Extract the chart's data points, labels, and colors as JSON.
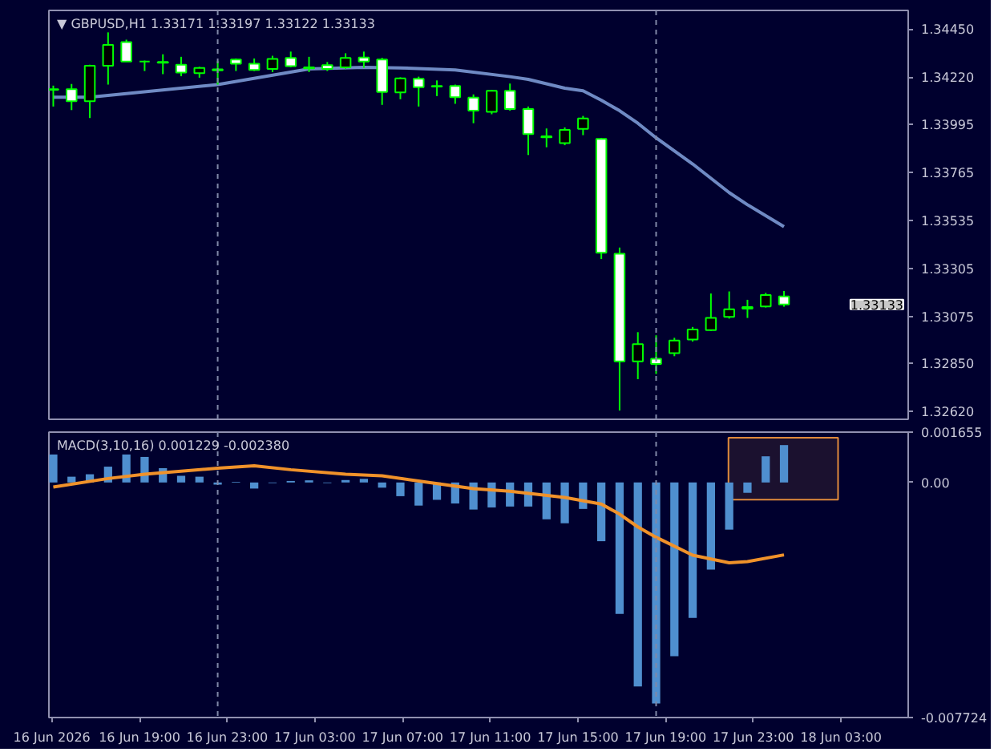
{
  "chart_data": [
    {
      "type": "candlestick",
      "title": "▼ GBPUSD,H1  1.33171 1.33197 1.33122 1.33133",
      "tick_labels": "y",
      "color": "#00ff00",
      "x": [
        "2026-06-16T15:04",
        "2026-06-16T15:54",
        "2026-06-16T16:44",
        "2026-06-16T17:34",
        "2026-06-16T18:24",
        "2026-06-16T19:14",
        "2026-06-16T20:04",
        "2026-06-16T20:54",
        "2026-06-16T21:44",
        "2026-06-16T22:34",
        "2026-06-16T23:24",
        "2026-06-17T00:14",
        "2026-06-17T01:04",
        "2026-06-17T01:54",
        "2026-06-17T02:44",
        "2026-06-17T03:34",
        "2026-06-17T04:24",
        "2026-06-17T05:14",
        "2026-06-17T06:04",
        "2026-06-17T06:54",
        "2026-06-17T07:44",
        "2026-06-17T08:34",
        "2026-06-17T09:24",
        "2026-06-17T10:14",
        "2026-06-17T11:04",
        "2026-06-17T11:54",
        "2026-06-17T12:44",
        "2026-06-17T13:34",
        "2026-06-17T14:24",
        "2026-06-17T15:14",
        "2026-06-17T16:04",
        "2026-06-17T16:54",
        "2026-06-17T17:44",
        "2026-06-17T18:34",
        "2026-06-17T19:24",
        "2026-06-17T20:14",
        "2026-06-17T21:04",
        "2026-06-17T21:54",
        "2026-06-17T22:44",
        "2026-06-17T23:34",
        "2026-06-18T00:24"
      ],
      "ohlc": [
        [
          1.34163,
          1.3418,
          1.3408,
          1.3416
        ],
        [
          1.34163,
          1.34188,
          1.34063,
          1.34105
        ],
        [
          1.34105,
          1.3428,
          1.34025,
          1.34275
        ],
        [
          1.34275,
          1.34435,
          1.34185,
          1.34375
        ],
        [
          1.34388,
          1.344,
          1.34295,
          1.34295
        ],
        [
          1.34295,
          1.343,
          1.3425,
          1.34295
        ],
        [
          1.34293,
          1.3433,
          1.34235,
          1.3429
        ],
        [
          1.3428,
          1.34318,
          1.34225,
          1.34243
        ],
        [
          1.3424,
          1.3427,
          1.34218,
          1.34265
        ],
        [
          1.34258,
          1.34298,
          1.34185,
          1.34253
        ],
        [
          1.34305,
          1.3431,
          1.3425,
          1.34285
        ],
        [
          1.34285,
          1.3431,
          1.3425,
          1.34255
        ],
        [
          1.3426,
          1.34323,
          1.34245,
          1.34308
        ],
        [
          1.34313,
          1.34343,
          1.34268,
          1.34273
        ],
        [
          1.34268,
          1.34318,
          1.34245,
          1.34263
        ],
        [
          1.34278,
          1.34293,
          1.3425,
          1.3426
        ],
        [
          1.34268,
          1.34335,
          1.3426,
          1.34313
        ],
        [
          1.34315,
          1.34343,
          1.34265,
          1.34295
        ],
        [
          1.34305,
          1.34313,
          1.34088,
          1.3415
        ],
        [
          1.34148,
          1.3422,
          1.34115,
          1.34215
        ],
        [
          1.34213,
          1.34223,
          1.3408,
          1.34173
        ],
        [
          1.34178,
          1.34205,
          1.3413,
          1.34175
        ],
        [
          1.34178,
          1.34185,
          1.34093,
          1.34125
        ],
        [
          1.34123,
          1.34138,
          1.34,
          1.3406
        ],
        [
          1.34055,
          1.3416,
          1.34043,
          1.34155
        ],
        [
          1.34155,
          1.3419,
          1.3406,
          1.34068
        ],
        [
          1.34068,
          1.3408,
          1.33848,
          1.33948
        ],
        [
          1.33938,
          1.33975,
          1.33885,
          1.33933
        ],
        [
          1.33905,
          1.3398,
          1.33895,
          1.33968
        ],
        [
          1.33973,
          1.34035,
          1.33943,
          1.34023
        ],
        [
          1.33925,
          1.3393,
          1.3335,
          1.3338
        ],
        [
          1.33375,
          1.33405,
          1.32625,
          1.3286
        ],
        [
          1.3286,
          1.33,
          1.32775,
          1.32943
        ],
        [
          1.32873,
          1.32985,
          1.328,
          1.32848
        ],
        [
          1.329,
          1.32973,
          1.32885,
          1.3296
        ],
        [
          1.32965,
          1.33025,
          1.32955,
          1.33013
        ],
        [
          1.3301,
          1.33185,
          1.33005,
          1.33068
        ],
        [
          1.33073,
          1.33195,
          1.33065,
          1.3311
        ],
        [
          1.33113,
          1.33155,
          1.33068,
          1.3312
        ],
        [
          1.33123,
          1.33188,
          1.33118,
          1.33178
        ],
        [
          1.33171,
          1.33197,
          1.33122,
          1.33133
        ]
      ],
      "colors": [
        "#ffffff",
        "#ffffff",
        "#000000",
        "#000000",
        "#ffffff",
        "#00ff00",
        "#ffffff",
        "#ffffff",
        "#000000",
        "#ffffff",
        "#ffffff",
        "#ffffff",
        "#000000",
        "#ffffff",
        "#ffffff",
        "#ffffff",
        "#000000",
        "#ffffff",
        "#ffffff",
        "#000000",
        "#ffffff",
        "#ffffff",
        "#ffffff",
        "#ffffff",
        "#000000",
        "#ffffff",
        "#ffffff",
        "#ffffff",
        "#000000",
        "#000000",
        "#ffffff",
        "#ffffff",
        "#000000",
        "#ffffff",
        "#000000",
        "#000000",
        "#000000",
        "#000000",
        "#000000",
        "#000000",
        "#ffffff"
      ],
      "series": [
        {
          "type": "line",
          "color": "#6f8ac4",
          "x": [
            "2026-06-16T15:04",
            "2026-06-16T16:44",
            "2026-06-16T22:34",
            "2026-06-17T02:44",
            "2026-06-17T05:14",
            "2026-06-17T06:54",
            "2026-06-17T09:24",
            "2026-06-17T11:54",
            "2026-06-17T12:44",
            "2026-06-17T14:24",
            "2026-06-17T15:14",
            "2026-06-17T16:04",
            "2026-06-17T16:54",
            "2026-06-17T17:44",
            "2026-06-17T18:34",
            "2026-06-17T20:14",
            "2026-06-17T21:54",
            "2026-06-17T22:44",
            "2026-06-18T00:24"
          ],
          "values": [
            1.34125,
            1.34125,
            1.34185,
            1.3426,
            1.34268,
            1.34265,
            1.34255,
            1.34223,
            1.3421,
            1.34168,
            1.34155,
            1.3411,
            1.3406,
            1.34,
            1.3393,
            1.33805,
            1.33668,
            1.3361,
            1.33505
          ]
        }
      ],
      "annotations": [
        "1.33133"
      ],
      "xlim": [
        "2026-06-16T14:52",
        "2026-06-18T06:04"
      ],
      "ylim": [
        1.32583,
        1.3454
      ],
      "yticks": [
        {
          "value": 1.3445,
          "label": "1.34450"
        },
        {
          "value": 1.3422,
          "label": "1.34220"
        },
        {
          "value": 1.33995,
          "label": "1.33995"
        },
        {
          "value": 1.33765,
          "label": "1.33765"
        },
        {
          "value": 1.33535,
          "label": "1.33535"
        },
        {
          "value": 1.33305,
          "label": "1.33305"
        },
        {
          "value": 1.33075,
          "label": "1.33075"
        },
        {
          "value": 1.3285,
          "label": "1.32850"
        },
        {
          "value": 1.3262,
          "label": "1.32620"
        }
      ],
      "ref_lines": [
        {
          "axis": "x",
          "value": "2026-06-16T22:34",
          "line_style": "dashed",
          "color": "#8088a8"
        },
        {
          "axis": "x",
          "value": "2026-06-17T18:34",
          "line_style": "dashed",
          "color": "#8088a8"
        }
      ]
    },
    {
      "type": "bar",
      "title": "MACD(3,10,16) 0.001229 -0.002380",
      "x": [
        "2026-06-16T15:04",
        "2026-06-16T15:54",
        "2026-06-16T16:44",
        "2026-06-16T17:34",
        "2026-06-16T18:24",
        "2026-06-16T19:14",
        "2026-06-16T20:04",
        "2026-06-16T20:54",
        "2026-06-16T21:44",
        "2026-06-16T22:34",
        "2026-06-16T23:24",
        "2026-06-17T00:14",
        "2026-06-17T01:04",
        "2026-06-17T01:54",
        "2026-06-17T02:44",
        "2026-06-17T03:34",
        "2026-06-17T04:24",
        "2026-06-17T05:14",
        "2026-06-17T06:04",
        "2026-06-17T06:54",
        "2026-06-17T07:44",
        "2026-06-17T08:34",
        "2026-06-17T09:24",
        "2026-06-17T10:14",
        "2026-06-17T11:04",
        "2026-06-17T11:54",
        "2026-06-17T12:44",
        "2026-06-17T13:34",
        "2026-06-17T14:24",
        "2026-06-17T15:14",
        "2026-06-17T16:04",
        "2026-06-17T16:54",
        "2026-06-17T17:44",
        "2026-06-17T18:34",
        "2026-06-17T19:24",
        "2026-06-17T20:14",
        "2026-06-17T21:04",
        "2026-06-17T21:54",
        "2026-06-17T22:44",
        "2026-06-17T23:34",
        "2026-06-18T00:24"
      ],
      "series": [
        {
          "color": "#4f8fcf",
          "values": [
            0.00092,
            0.00019,
            0.00027,
            0.00052,
            0.00092,
            0.00084,
            0.00047,
            0.00022,
            0.00019,
            -7e-05,
            2e-05,
            -0.0002,
            -2e-05,
            5e-05,
            7e-05,
            -2e-05,
            8e-05,
            0.00012,
            -0.00017,
            -0.00045,
            -0.00076,
            -0.00057,
            -0.00069,
            -0.00089,
            -0.00082,
            -0.00079,
            -0.00079,
            -0.00121,
            -0.00134,
            -0.00087,
            -0.00193,
            -0.00432,
            -0.0067,
            -0.00726,
            -0.00571,
            -0.00445,
            -0.00286,
            -0.00155,
            -0.00034,
            0.00086,
            0.001229
          ]
        },
        {
          "type": "line",
          "color": "#f0922a",
          "x": [
            "2026-06-16T15:04",
            "2026-06-16T17:34",
            "2026-06-16T19:14",
            "2026-06-16T22:34",
            "2026-06-17T00:14",
            "2026-06-17T01:54",
            "2026-06-17T04:24",
            "2026-06-17T06:04",
            "2026-06-17T07:44",
            "2026-06-17T10:14",
            "2026-06-17T11:54",
            "2026-06-17T14:24",
            "2026-06-17T16:04",
            "2026-06-17T16:54",
            "2026-06-17T17:44",
            "2026-06-17T18:34",
            "2026-06-17T20:14",
            "2026-06-17T21:54",
            "2026-06-17T22:44",
            "2026-06-18T00:24"
          ],
          "values": [
            -0.00015,
            0.00013,
            0.00027,
            0.00047,
            0.00055,
            0.00042,
            0.00027,
            0.00022,
            5e-05,
            -0.0002,
            -0.00029,
            -0.00049,
            -0.00071,
            -0.00104,
            -0.00146,
            -0.0018,
            -0.00239,
            -0.00264,
            -0.0026,
            -0.00238
          ]
        }
      ],
      "xlim": [
        "2026-06-16T14:52",
        "2026-06-18T06:04"
      ],
      "xticks": [
        {
          "value": "2026-06-16T15:00",
          "label": "16 Jun 2026"
        },
        {
          "value": "2026-06-16T19:00",
          "label": "16 Jun 19:00"
        },
        {
          "value": "2026-06-16T23:00",
          "label": "16 Jun 23:00"
        },
        {
          "value": "2026-06-17T03:00",
          "label": "17 Jun 03:00"
        },
        {
          "value": "2026-06-17T07:00",
          "label": "17 Jun 07:00"
        },
        {
          "value": "2026-06-17T11:00",
          "label": "17 Jun 11:00"
        },
        {
          "value": "2026-06-17T15:00",
          "label": "17 Jun 15:00"
        },
        {
          "value": "2026-06-17T19:00",
          "label": "17 Jun 19:00"
        },
        {
          "value": "2026-06-17T23:00",
          "label": "17 Jun 23:00"
        },
        {
          "value": "2026-06-18T03:00",
          "label": "18 Jun 03:00"
        }
      ],
      "ylim": [
        -0.007724,
        0.001655
      ],
      "yticks": [
        0.001655,
        {
          "value": 0,
          "label": "0.00"
        },
        -0.007724
      ],
      "ref_lines": [
        {
          "axis": "x",
          "value": "2026-06-16T22:34",
          "line_style": "dashed",
          "color": "#8088a8"
        },
        {
          "axis": "x",
          "value": "2026-06-17T18:34",
          "line_style": "dashed",
          "color": "#8088a8"
        }
      ],
      "bands": [
        {
          "axis": "x",
          "from": "2026-06-17T21:52",
          "to": "2026-06-18T02:52",
          "color": "#e08a3c"
        }
      ]
    }
  ]
}
